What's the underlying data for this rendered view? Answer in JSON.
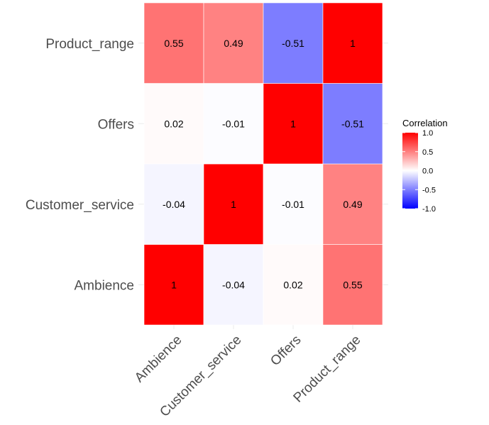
{
  "chart_data": {
    "type": "heatmap",
    "title": "",
    "xlabel": "",
    "ylabel": "",
    "x_categories": [
      "Ambience",
      "Customer_service",
      "Offers",
      "Product_range"
    ],
    "y_categories": [
      "Ambience",
      "Customer_service",
      "Offers",
      "Product_range"
    ],
    "values": [
      [
        1,
        -0.04,
        0.02,
        0.55
      ],
      [
        -0.04,
        1,
        -0.01,
        0.49
      ],
      [
        0.02,
        -0.01,
        1,
        -0.51
      ],
      [
        0.55,
        0.49,
        -0.51,
        1
      ]
    ],
    "cell_labels": [
      [
        "1",
        "-0.04",
        "0.02",
        "0.55"
      ],
      [
        "-0.04",
        "1",
        "-0.01",
        "0.49"
      ],
      [
        "0.02",
        "-0.01",
        "1",
        "-0.51"
      ],
      [
        "0.55",
        "0.49",
        "-0.51",
        "1"
      ]
    ],
    "value_range": [
      -1,
      1
    ],
    "legend": {
      "title": "Correlation",
      "ticks": [
        1.0,
        0.5,
        0.0,
        -0.5,
        -1.0
      ],
      "tick_labels": [
        "1.0",
        "0.5",
        "0.0",
        "-0.5",
        "-1.0"
      ],
      "position": "right"
    },
    "colors": {
      "low": "#0000ff",
      "mid": "#ffffff",
      "high": "#ff0000",
      "grid": "#ebebeb"
    }
  }
}
